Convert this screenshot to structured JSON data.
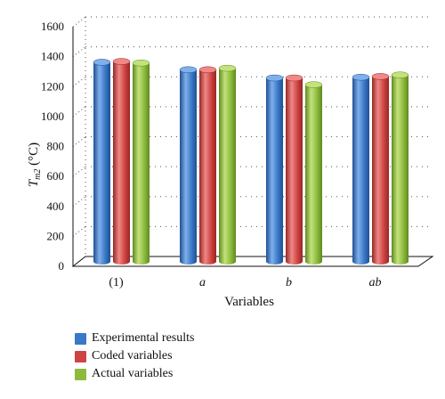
{
  "chart_data": {
    "type": "bar",
    "categories": [
      "(1)",
      "a",
      "b",
      "ab"
    ],
    "category_italic": [
      false,
      true,
      true,
      true
    ],
    "series": [
      {
        "name": "Experimental results",
        "values": [
          1330,
          1280,
          1225,
          1230
        ],
        "color": "#3a78c8",
        "dark": "#1f4f94",
        "light": "#7fb0ea"
      },
      {
        "name": "Coded variables",
        "values": [
          1335,
          1280,
          1225,
          1235
        ],
        "color": "#cf4442",
        "dark": "#962624",
        "light": "#ef8886"
      },
      {
        "name": "Actual variables",
        "values": [
          1325,
          1290,
          1180,
          1245
        ],
        "color": "#8dba3d",
        "dark": "#5f8a1e",
        "light": "#c3e27c"
      }
    ],
    "yticks": [
      "0",
      "200",
      "400",
      "600",
      "800",
      "1000",
      "1200",
      "1400",
      "1600"
    ],
    "ylim": [
      0,
      1600
    ],
    "xlabel": "Variables",
    "ylabel_main": "T",
    "ylabel_sub": "m2",
    "ylabel_unit": " (°C)",
    "grid": true,
    "legend_position": "bottom-left"
  }
}
